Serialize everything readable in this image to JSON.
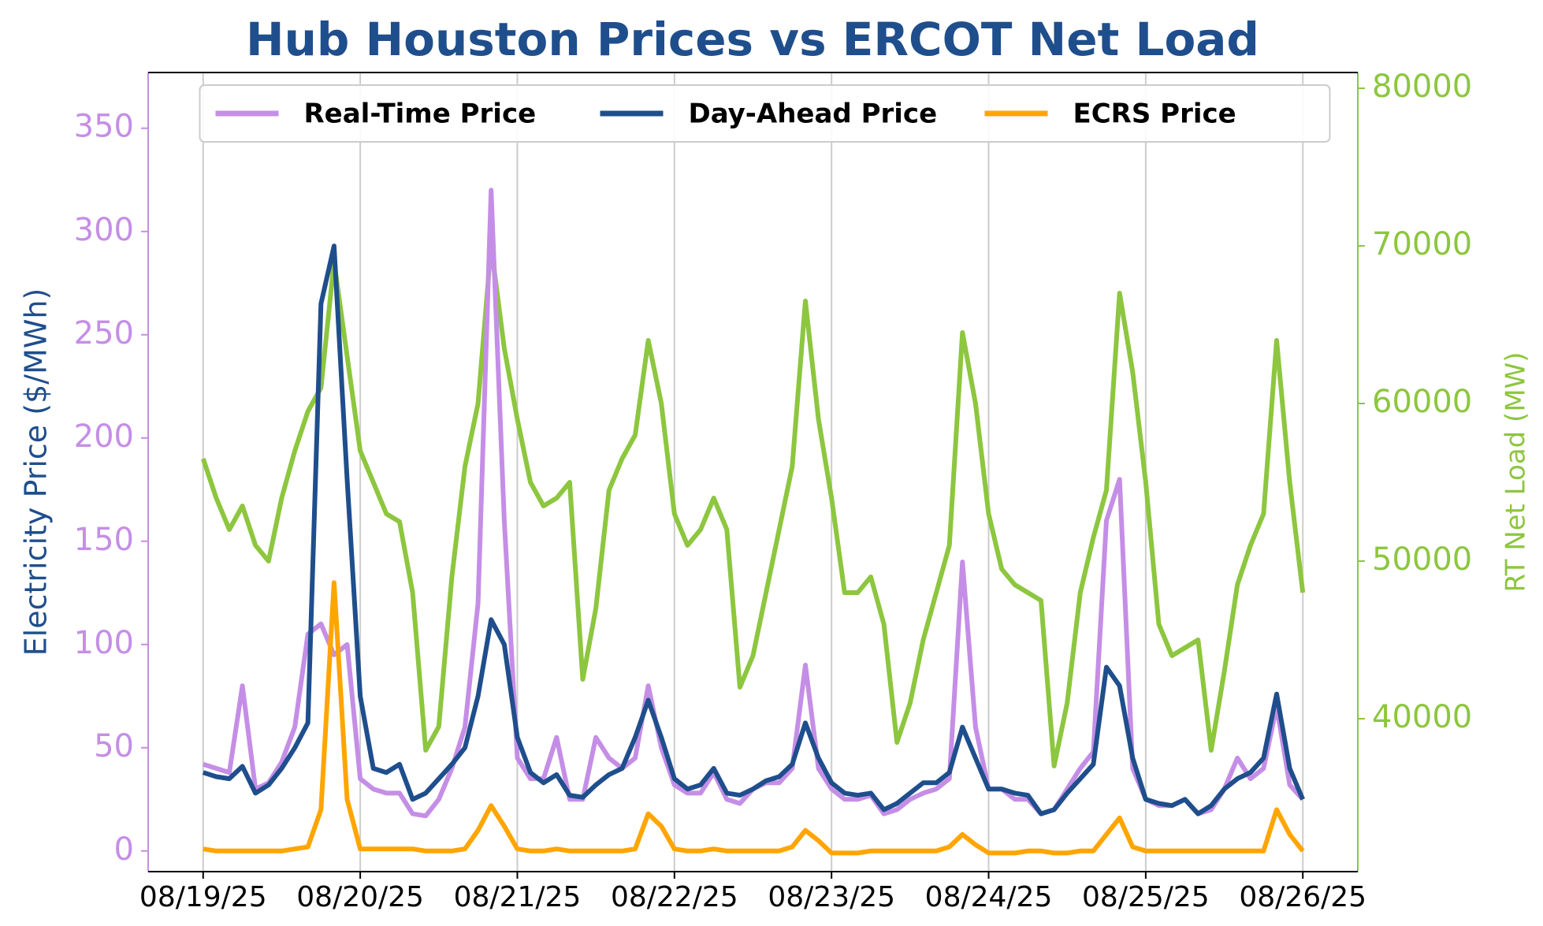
{
  "chart_data": {
    "type": "line",
    "title": "Hub Houston Prices vs ERCOT Net Load",
    "ylabel": "Electricity Price ($/MWh)",
    "y2label": "RT Net Load (MW)",
    "x": [
      0,
      2,
      4,
      6,
      8,
      10,
      12,
      14,
      16,
      18,
      20,
      22,
      24,
      26,
      28,
      30,
      32,
      34,
      36,
      38,
      40,
      42,
      44,
      46,
      48,
      50,
      52,
      54,
      56,
      58,
      60,
      62,
      64,
      66,
      68,
      70,
      72,
      74,
      76,
      78,
      80,
      82,
      84,
      86,
      88,
      90,
      92,
      94,
      96,
      98,
      100,
      102,
      104,
      106,
      108,
      110,
      112,
      114,
      116,
      118,
      120,
      122,
      124,
      126,
      128,
      130,
      132,
      134,
      136,
      138,
      140,
      142,
      144,
      146,
      148,
      150,
      152,
      154,
      156,
      158,
      160,
      162,
      164,
      166,
      168
    ],
    "xlim": [
      -8.4,
      176.4
    ],
    "xticks": [
      {
        "value": 0,
        "label": "08/19/25"
      },
      {
        "value": 24,
        "label": "08/20/25"
      },
      {
        "value": 48,
        "label": "08/21/25"
      },
      {
        "value": 72,
        "label": "08/22/25"
      },
      {
        "value": 96,
        "label": "08/23/25"
      },
      {
        "value": 120,
        "label": "08/24/25"
      },
      {
        "value": 144,
        "label": "08/25/25"
      },
      {
        "value": 168,
        "label": "08/26/25"
      }
    ],
    "ylim": [
      -10,
      377
    ],
    "yticks": [
      0,
      50,
      100,
      150,
      200,
      250,
      300,
      350
    ],
    "y2lim": [
      30300,
      81000
    ],
    "y2ticks": [
      40000,
      50000,
      60000,
      70000,
      80000
    ],
    "grid": "x",
    "legend": "upper center",
    "series": [
      {
        "name": "Real-Time Price",
        "color": "#c58ee6",
        "values": [
          42,
          40,
          38,
          80,
          30,
          33,
          43,
          60,
          105,
          110,
          95,
          100,
          35,
          30,
          28,
          28,
          18,
          17,
          25,
          40,
          60,
          120,
          320,
          160,
          45,
          35,
          35,
          55,
          25,
          25,
          55,
          45,
          40,
          45,
          80,
          50,
          32,
          28,
          28,
          38,
          25,
          23,
          30,
          33,
          33,
          40,
          90,
          40,
          30,
          25,
          25,
          27,
          18,
          20,
          25,
          28,
          30,
          35,
          140,
          60,
          30,
          30,
          25,
          25,
          18,
          20,
          30,
          40,
          48,
          160,
          180,
          40,
          25,
          22,
          22,
          25,
          18,
          20,
          30,
          45,
          35,
          40,
          70,
          32,
          25
        ]
      },
      {
        "name": "Day-Ahead Price",
        "color": "#1f4e8c",
        "values": [
          38,
          36,
          35,
          41,
          28,
          32,
          40,
          50,
          62,
          265,
          293,
          180,
          75,
          40,
          38,
          42,
          25,
          28,
          35,
          42,
          50,
          75,
          112,
          100,
          55,
          38,
          33,
          37,
          27,
          26,
          32,
          37,
          40,
          55,
          73,
          55,
          35,
          30,
          32,
          40,
          28,
          27,
          30,
          34,
          36,
          42,
          62,
          45,
          33,
          28,
          27,
          28,
          20,
          23,
          28,
          33,
          33,
          38,
          60,
          45,
          30,
          30,
          28,
          27,
          18,
          20,
          28,
          35,
          42,
          89,
          80,
          45,
          25,
          23,
          22,
          25,
          18,
          22,
          30,
          35,
          38,
          45,
          76,
          40,
          25
        ]
      },
      {
        "name": "ECRS Price",
        "color": "#ffa500",
        "values": [
          1,
          0,
          0,
          0,
          0,
          0,
          0,
          1,
          2,
          20,
          130,
          25,
          1,
          1,
          1,
          1,
          1,
          0,
          0,
          0,
          1,
          10,
          22,
          12,
          1,
          0,
          0,
          1,
          0,
          0,
          0,
          0,
          0,
          1,
          18,
          12,
          1,
          0,
          0,
          1,
          0,
          0,
          0,
          0,
          0,
          2,
          10,
          5,
          -1,
          -1,
          -1,
          0,
          0,
          0,
          0,
          0,
          0,
          2,
          8,
          3,
          -1,
          -1,
          -1,
          0,
          0,
          -1,
          -1,
          0,
          0,
          8,
          16,
          2,
          0,
          0,
          0,
          0,
          0,
          0,
          0,
          0,
          0,
          0,
          20,
          8,
          0
        ]
      },
      {
        "name": "RT Net Load",
        "color": "#8dc63f",
        "axis": "y2",
        "values": [
          56500,
          54000,
          52000,
          53500,
          51000,
          50000,
          54000,
          57000,
          59500,
          61000,
          69000,
          63000,
          57000,
          55000,
          53000,
          52500,
          48000,
          38000,
          39500,
          49000,
          56000,
          60000,
          70000,
          63500,
          59000,
          55000,
          53500,
          54000,
          55000,
          42500,
          47000,
          54500,
          56500,
          58000,
          64000,
          60000,
          53000,
          51000,
          52000,
          54000,
          52000,
          42000,
          44000,
          48000,
          52000,
          56000,
          66500,
          59000,
          54000,
          48000,
          48000,
          49000,
          46000,
          38500,
          41000,
          45000,
          48000,
          51000,
          64500,
          60000,
          53000,
          49500,
          48500,
          48000,
          47500,
          37000,
          41000,
          48000,
          51500,
          54500,
          67000,
          62000,
          55000,
          46000,
          44000,
          44500,
          45000,
          38000,
          43000,
          48500,
          51000,
          53000,
          64000,
          55000,
          48000
        ]
      }
    ]
  }
}
